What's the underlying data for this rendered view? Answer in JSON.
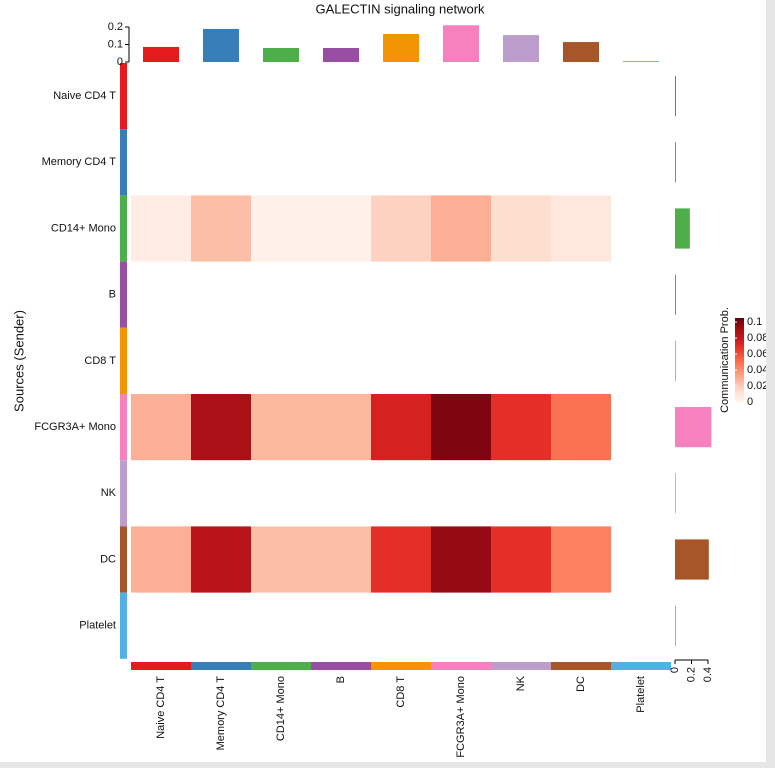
{
  "chart_data": {
    "type": "heatmap",
    "title": "GALECTIN signaling network",
    "y_label": "Sources (Sender)",
    "rows": [
      "Naive CD4 T",
      "Memory CD4 T",
      "CD14+ Mono",
      "B",
      "CD8 T",
      "FCGR3A+ Mono",
      "NK",
      "DC",
      "Platelet"
    ],
    "columns": [
      "Naive CD4 T",
      "Memory CD4 T",
      "CD14+ Mono",
      "B",
      "CD8 T",
      "FCGR3A+ Mono",
      "NK",
      "DC",
      "Platelet"
    ],
    "colors": [
      "#e41a1c",
      "#377eb8",
      "#4daf4a",
      "#984ea3",
      "#f29403",
      "#f781bf",
      "#bc9dcc",
      "#a65628",
      "#54b0e4"
    ],
    "values": [
      [
        0,
        0,
        0,
        0,
        0,
        0,
        0,
        0,
        0
      ],
      [
        0,
        0,
        0,
        0,
        0,
        0,
        0,
        0,
        0
      ],
      [
        0.005,
        0.025,
        0.003,
        0.003,
        0.018,
        0.03,
        0.014,
        0.008,
        0
      ],
      [
        0,
        0,
        0,
        0,
        0,
        0,
        0,
        0,
        0
      ],
      [
        0,
        0,
        0,
        0,
        0,
        0,
        0,
        0,
        0
      ],
      [
        0.03,
        0.09,
        0.027,
        0.027,
        0.075,
        0.1,
        0.07,
        0.05,
        0
      ],
      [
        0,
        0,
        0,
        0,
        0,
        0,
        0,
        0,
        0
      ],
      [
        0.03,
        0.085,
        0.025,
        0.025,
        0.07,
        0.095,
        0.07,
        0.045,
        0
      ],
      [
        0,
        0,
        0,
        0,
        0,
        0,
        0,
        0,
        0
      ]
    ],
    "colorbar": {
      "label": "Communication Prob.",
      "lim": [
        0,
        0.105
      ],
      "ticks": [
        0,
        0.02,
        0.04,
        0.06,
        0.08,
        0.1
      ],
      "colors": [
        "#fff5f0",
        "#fee0d2",
        "#fcbba1",
        "#fc9272",
        "#fb6a4a",
        "#ef3b2c",
        "#cb181d",
        "#a50f15",
        "#67000d"
      ]
    },
    "top_bars": {
      "values": [
        0.086,
        0.189,
        0.08,
        0.08,
        0.16,
        0.21,
        0.154,
        0.114,
        0.005
      ],
      "ylim": [
        0,
        0.2
      ],
      "yticks": [
        0,
        0.1,
        0.2
      ]
    },
    "right_bars": {
      "values": [
        0.01,
        0.01,
        0.18,
        0.01,
        0.01,
        0.44,
        0.01,
        0.41,
        0.01
      ],
      "xlim": [
        0,
        0.4
      ],
      "xticks": [
        0,
        0.2,
        0.4
      ]
    }
  }
}
